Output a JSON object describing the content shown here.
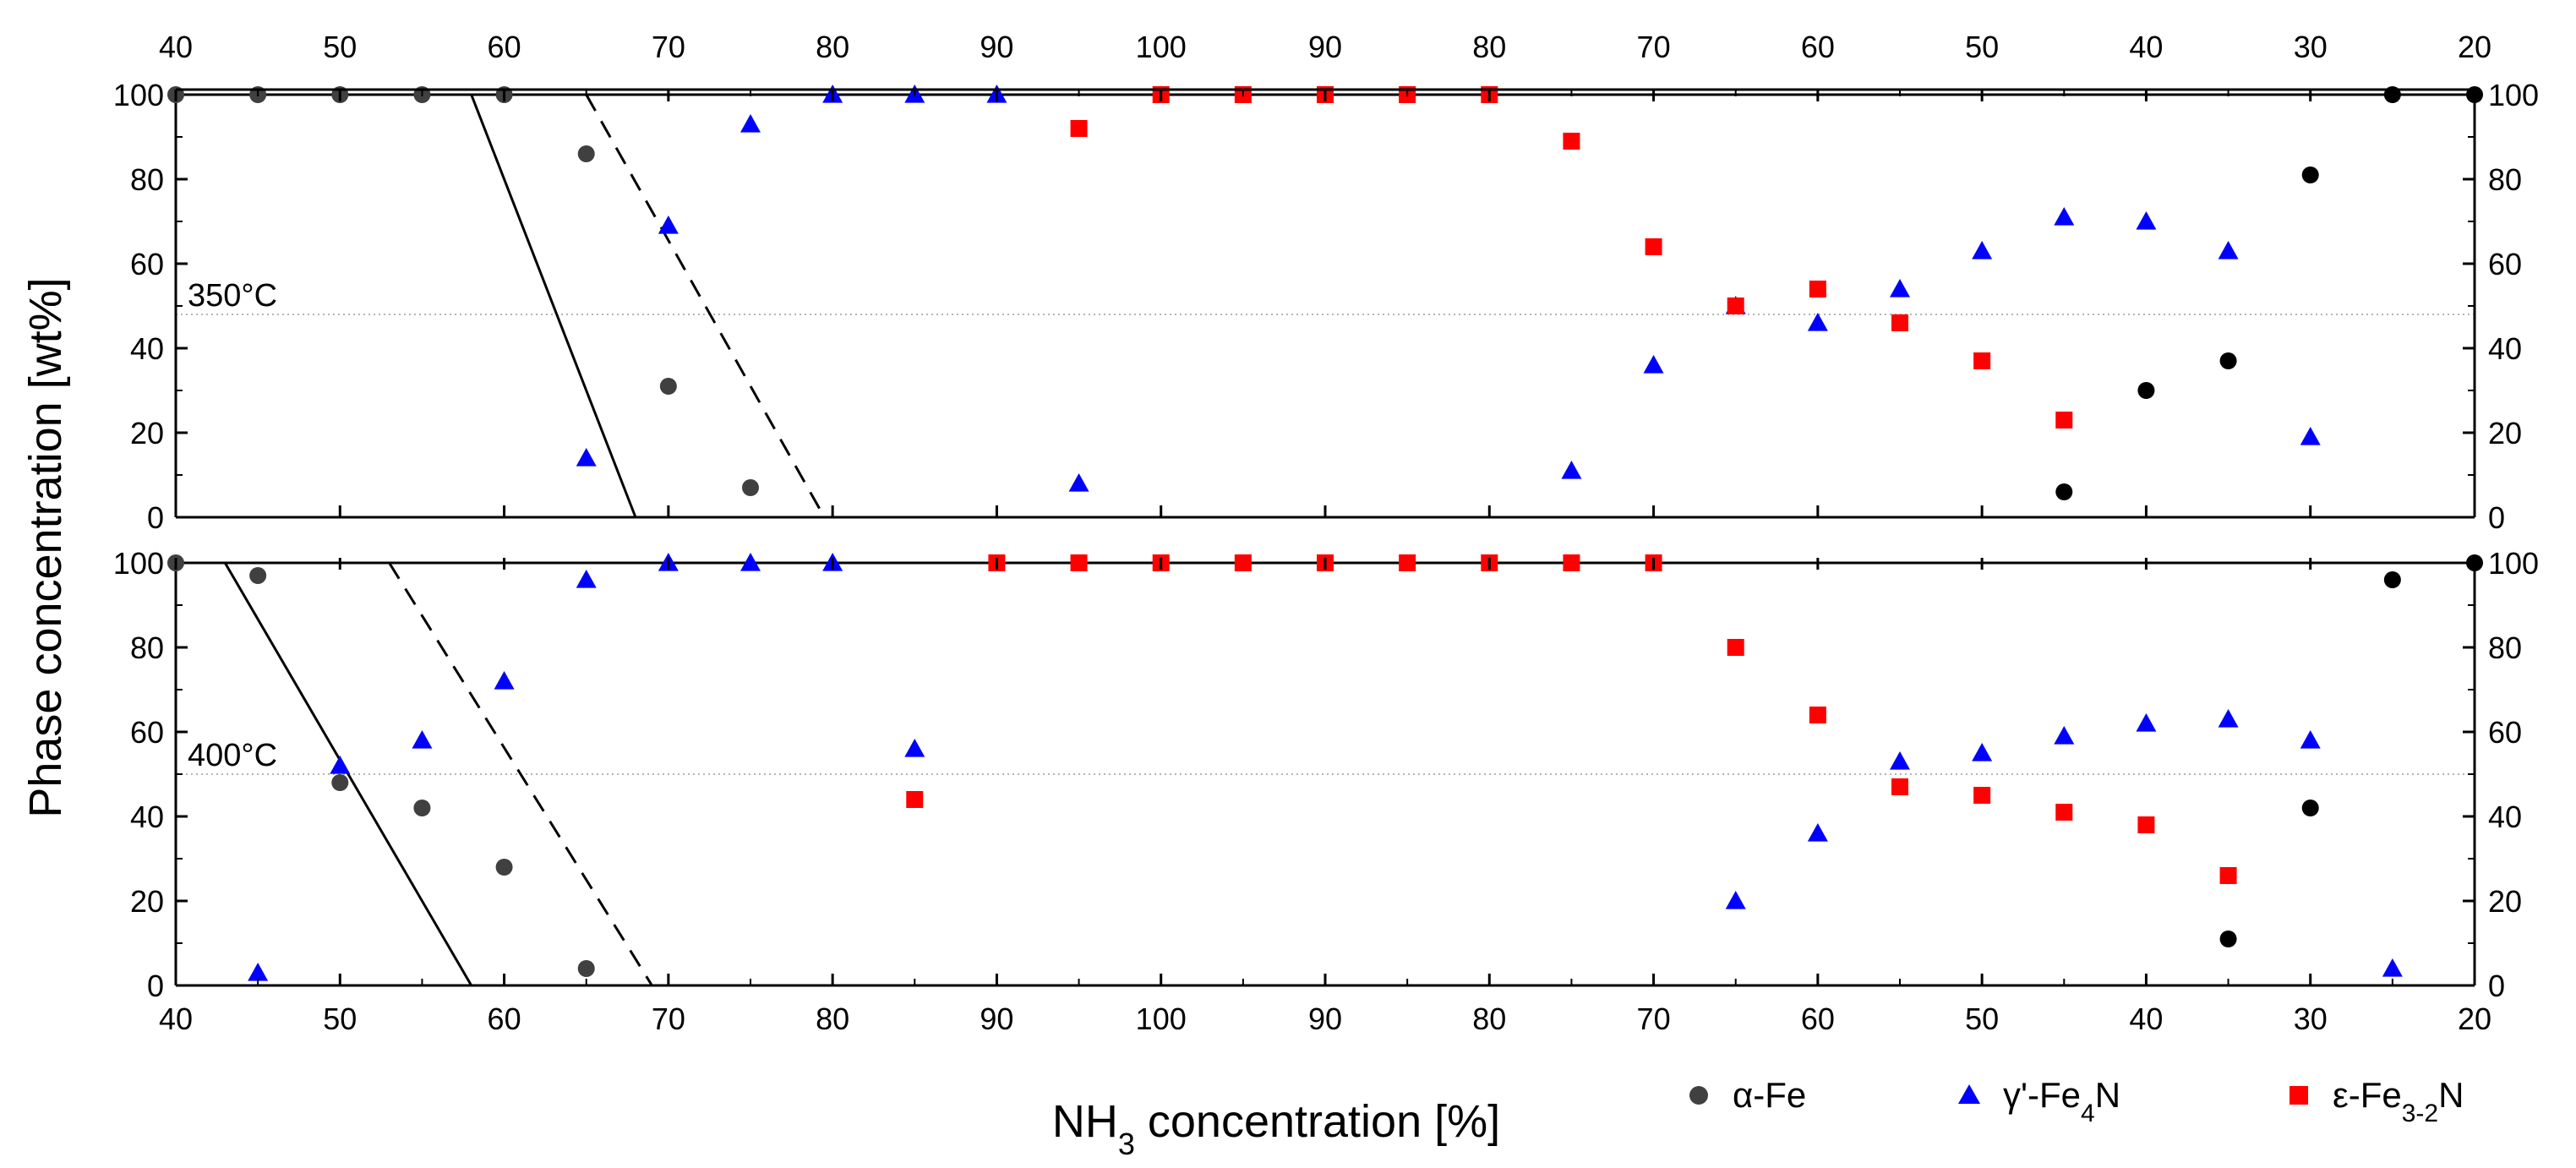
{
  "chart_data": {
    "type": "scatter",
    "x_tick_labels": [
      "40",
      "50",
      "60",
      "70",
      "80",
      "90",
      "100",
      "90",
      "80",
      "70",
      "60",
      "50",
      "40",
      "30",
      "20"
    ],
    "x_axis": {
      "description": "Continuous axis: NH3 concentration rising from 40 to 100 %, then falling from 100 to 20 %",
      "ylabel": "Phase concentration [wt%]",
      "xlabel_parts": {
        "pre": "NH",
        "sub": "3",
        "post": " concentration [%]"
      }
    },
    "ylim": [
      0,
      100
    ],
    "y_tick_labels": [
      "0",
      "20",
      "40",
      "60",
      "80",
      "100"
    ],
    "legend_placement": "bottom-right",
    "series_style": {
      "alpha": {
        "color": "#404040",
        "color_ramp_down": "#000000",
        "marker": "circle"
      },
      "gamma": {
        "color": "#0000ff",
        "marker": "triangle"
      },
      "eps": {
        "color": "#ff0000",
        "marker": "square"
      }
    },
    "legend": [
      {
        "key": "alpha",
        "pre": "α-Fe",
        "sub": "",
        "post": ""
      },
      {
        "key": "gamma",
        "pre": "γ'-Fe",
        "sub": "4",
        "post": "N"
      },
      {
        "key": "eps",
        "pre": "ε-Fe",
        "sub": "3-2",
        "post": "N"
      }
    ],
    "panels": [
      {
        "label": "350°C",
        "dotted_level": 48,
        "solid_line": {
          "from": [
            58,
            100
          ],
          "to": [
            68,
            0
          ]
        },
        "dashed_line": {
          "from": [
            65,
            100
          ],
          "to": [
            79.5,
            0
          ]
        },
        "series": {
          "alpha": [
            [
              40,
              100
            ],
            [
              45,
              100
            ],
            [
              50,
              100
            ],
            [
              55,
              100
            ],
            [
              60,
              100
            ],
            [
              65,
              86
            ],
            [
              70,
              31
            ],
            [
              75,
              7
            ]
          ],
          "alpha_down": [
            [
              45,
              6
            ],
            [
              40,
              30
            ],
            [
              35,
              37
            ],
            [
              30,
              81
            ],
            [
              25,
              100
            ],
            [
              20,
              100
            ]
          ],
          "gamma": [
            [
              65,
              14
            ],
            [
              70,
              69
            ],
            [
              75,
              93
            ],
            [
              80,
              100
            ],
            [
              85,
              100
            ],
            [
              90,
              100
            ],
            [
              95,
              8
            ],
            [
              75,
              11
            ],
            [
              70,
              36
            ],
            [
              65,
              50
            ],
            [
              60,
              46
            ],
            [
              55,
              54
            ],
            [
              50,
              63
            ],
            [
              45,
              71
            ],
            [
              40,
              70
            ],
            [
              35,
              63
            ],
            [
              30,
              19
            ]
          ],
          "eps": [
            [
              95,
              92
            ],
            [
              100,
              100
            ],
            [
              95,
              100
            ],
            [
              90,
              100
            ],
            [
              85,
              100
            ],
            [
              80,
              100
            ],
            [
              75,
              89
            ],
            [
              70,
              64
            ],
            [
              65,
              50
            ],
            [
              60,
              54
            ],
            [
              55,
              46
            ],
            [
              50,
              37
            ],
            [
              45,
              23
            ]
          ]
        }
      },
      {
        "label": "400°C",
        "dotted_level": 50,
        "solid_line": {
          "from": [
            43,
            100
          ],
          "to": [
            58,
            0
          ]
        },
        "dashed_line": {
          "from": [
            53,
            100
          ],
          "to": [
            69,
            0
          ]
        },
        "series": {
          "alpha": [
            [
              40,
              100
            ],
            [
              45,
              97
            ],
            [
              50,
              48
            ],
            [
              55,
              42
            ],
            [
              60,
              28
            ],
            [
              65,
              4
            ]
          ],
          "alpha_down": [
            [
              35,
              11
            ],
            [
              30,
              42
            ],
            [
              25,
              96
            ],
            [
              20,
              100
            ]
          ],
          "gamma": [
            [
              45,
              3
            ],
            [
              50,
              52
            ],
            [
              55,
              58
            ],
            [
              60,
              72
            ],
            [
              65,
              96
            ],
            [
              70,
              100
            ],
            [
              75,
              100
            ],
            [
              80,
              100
            ],
            [
              85,
              56
            ],
            [
              65,
              20
            ],
            [
              60,
              36
            ],
            [
              55,
              53
            ],
            [
              50,
              55
            ],
            [
              45,
              59
            ],
            [
              40,
              62
            ],
            [
              35,
              63
            ],
            [
              30,
              58
            ],
            [
              25,
              4
            ]
          ],
          "eps": [
            [
              85,
              44
            ],
            [
              90,
              100
            ],
            [
              95,
              100
            ],
            [
              100,
              100
            ],
            [
              95,
              100
            ],
            [
              90,
              100
            ],
            [
              85,
              100
            ],
            [
              80,
              100
            ],
            [
              75,
              100
            ],
            [
              70,
              100
            ],
            [
              65,
              80
            ],
            [
              60,
              64
            ],
            [
              55,
              47
            ],
            [
              50,
              45
            ],
            [
              45,
              41
            ],
            [
              40,
              38
            ],
            [
              35,
              26
            ]
          ]
        }
      }
    ]
  }
}
